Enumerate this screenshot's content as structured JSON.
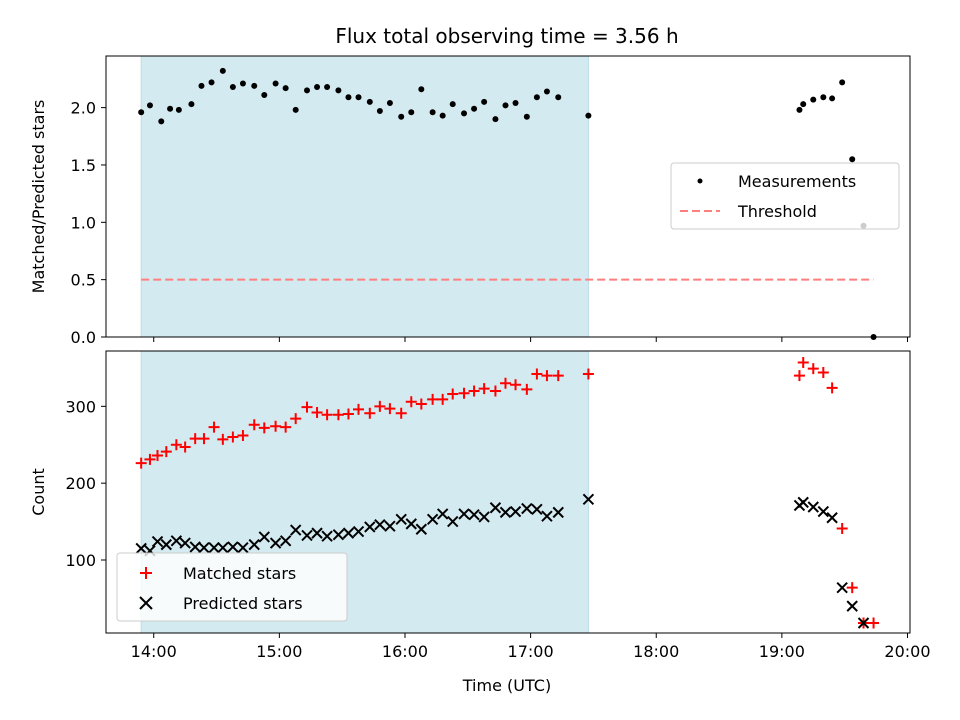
{
  "title": "Flux total observing time = 3.56 h",
  "xlabel": "Time (UTC)",
  "xticks": [
    "14:00",
    "15:00",
    "16:00",
    "17:00",
    "18:00",
    "19:00",
    "20:00"
  ],
  "colors": {
    "shade": "#d4eaf1",
    "shade_edge": "#bcdce7",
    "measurement": "#000000",
    "threshold": "#ff7f7f",
    "matched": "#ff0000",
    "predicted": "#000000"
  },
  "chart_data": [
    {
      "type": "scatter",
      "name": "ratio-panel",
      "ylabel": "Matched/Predicted stars",
      "xlim": [
        13.62,
        20.02
      ],
      "ylim": [
        0.0,
        2.45
      ],
      "yticks": [
        0.0,
        0.5,
        1.0,
        1.5,
        2.0
      ],
      "ytick_labels": [
        "0.0",
        "0.5",
        "1.0",
        "1.5",
        "2.0"
      ],
      "shaded_span": [
        13.9,
        17.46
      ],
      "legend": {
        "placement": "center-right",
        "entries": [
          "Measurements",
          "Threshold"
        ]
      },
      "threshold": {
        "label": "Threshold",
        "y": 0.5,
        "x": [
          13.9,
          19.73
        ]
      },
      "series": [
        {
          "name": "Measurements",
          "x": [
            13.9,
            13.97,
            14.06,
            14.13,
            14.2,
            14.3,
            14.38,
            14.46,
            14.55,
            14.63,
            14.71,
            14.8,
            14.88,
            14.97,
            15.05,
            15.13,
            15.22,
            15.3,
            15.38,
            15.47,
            15.55,
            15.63,
            15.72,
            15.8,
            15.88,
            15.97,
            16.05,
            16.13,
            16.22,
            16.3,
            16.38,
            16.47,
            16.55,
            16.63,
            16.72,
            16.8,
            16.88,
            16.97,
            17.05,
            17.13,
            17.22,
            17.46,
            19.14,
            19.17,
            19.25,
            19.33,
            19.4,
            19.48,
            19.56,
            19.65,
            19.73
          ],
          "y": [
            1.96,
            2.02,
            1.88,
            1.99,
            1.98,
            2.03,
            2.19,
            2.22,
            2.32,
            2.18,
            2.21,
            2.19,
            2.11,
            2.21,
            2.17,
            1.98,
            2.15,
            2.18,
            2.18,
            2.15,
            2.09,
            2.09,
            2.05,
            1.97,
            2.04,
            1.92,
            1.96,
            2.16,
            1.96,
            1.93,
            2.03,
            1.95,
            1.99,
            2.05,
            1.9,
            2.02,
            2.04,
            1.92,
            2.09,
            2.14,
            2.09,
            1.93,
            1.98,
            2.03,
            2.07,
            2.09,
            2.08,
            2.22,
            1.55,
            0.97,
            0.0
          ]
        }
      ]
    },
    {
      "type": "scatter",
      "name": "count-panel",
      "ylabel": "Count",
      "xlim": [
        13.62,
        20.02
      ],
      "ylim": [
        5,
        372
      ],
      "yticks": [
        100,
        200,
        300
      ],
      "ytick_labels": [
        "100",
        "200",
        "300"
      ],
      "shaded_span": [
        13.9,
        17.46
      ],
      "legend": {
        "placement": "lower-left",
        "entries": [
          "Matched stars",
          "Predicted stars"
        ]
      },
      "series": [
        {
          "name": "Matched stars",
          "marker": "+",
          "x": [
            13.9,
            13.97,
            14.03,
            14.1,
            14.18,
            14.25,
            14.33,
            14.4,
            14.48,
            14.55,
            14.63,
            14.71,
            14.8,
            14.88,
            14.97,
            15.05,
            15.13,
            15.22,
            15.3,
            15.38,
            15.47,
            15.55,
            15.63,
            15.72,
            15.8,
            15.88,
            15.97,
            16.05,
            16.13,
            16.22,
            16.3,
            16.38,
            16.47,
            16.55,
            16.63,
            16.72,
            16.8,
            16.88,
            16.97,
            17.05,
            17.13,
            17.22,
            17.46,
            19.14,
            19.17,
            19.25,
            19.33,
            19.4,
            19.48,
            19.56,
            19.65,
            19.73
          ],
          "y": [
            226,
            231,
            236,
            241,
            250,
            247,
            258,
            258,
            273,
            257,
            260,
            262,
            276,
            272,
            274,
            273,
            284,
            299,
            292,
            289,
            289,
            290,
            296,
            291,
            300,
            297,
            291,
            306,
            303,
            309,
            309,
            316,
            317,
            320,
            323,
            320,
            330,
            328,
            322,
            342,
            340,
            340,
            342,
            340,
            357,
            349,
            344,
            324,
            141,
            64,
            18,
            18
          ]
        },
        {
          "name": "Predicted stars",
          "marker": "x",
          "x": [
            13.9,
            13.97,
            14.03,
            14.1,
            14.18,
            14.25,
            14.33,
            14.4,
            14.48,
            14.55,
            14.63,
            14.71,
            14.8,
            14.88,
            14.97,
            15.05,
            15.13,
            15.22,
            15.3,
            15.38,
            15.47,
            15.55,
            15.63,
            15.72,
            15.8,
            15.88,
            15.97,
            16.05,
            16.13,
            16.22,
            16.3,
            16.38,
            16.47,
            16.55,
            16.63,
            16.72,
            16.8,
            16.88,
            16.97,
            17.05,
            17.13,
            17.22,
            17.46,
            19.14,
            19.17,
            19.25,
            19.33,
            19.4,
            19.48,
            19.56,
            19.65
          ],
          "y": [
            115,
            112,
            124,
            120,
            125,
            122,
            117,
            116,
            116,
            116,
            117,
            116,
            120,
            130,
            122,
            125,
            139,
            132,
            135,
            131,
            133,
            135,
            137,
            143,
            146,
            144,
            153,
            147,
            140,
            153,
            160,
            150,
            160,
            159,
            156,
            168,
            162,
            163,
            167,
            166,
            157,
            162,
            179,
            171,
            175,
            169,
            163,
            155,
            64,
            40,
            18
          ]
        }
      ]
    }
  ]
}
